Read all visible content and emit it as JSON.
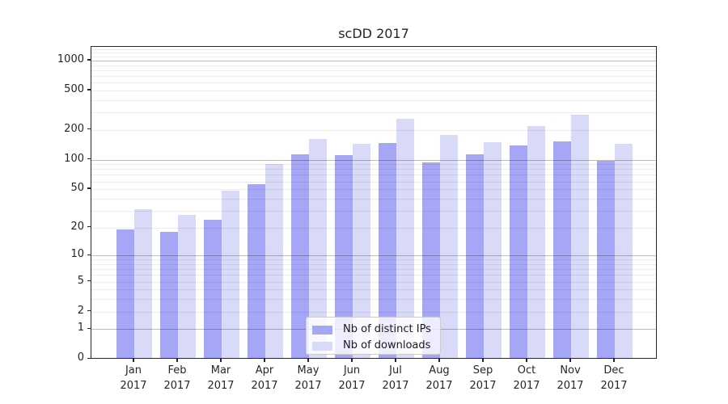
{
  "chart_data": {
    "type": "bar",
    "title": "scDD 2017",
    "categories": [
      "Jan 2017",
      "Feb 2017",
      "Mar 2017",
      "Apr 2017",
      "May 2017",
      "Jun 2017",
      "Jul 2017",
      "Aug 2017",
      "Sep 2017",
      "Oct 2017",
      "Nov 2017",
      "Dec 2017"
    ],
    "series": [
      {
        "name": "Nb of distinct IPs",
        "color": "#a6a6f6",
        "values": [
          19,
          18,
          24,
          56,
          113,
          111,
          148,
          94,
          113,
          139,
          153,
          98
        ]
      },
      {
        "name": "Nb of downloads",
        "color": "#d9d9f8",
        "values": [
          31,
          27,
          48,
          90,
          163,
          144,
          260,
          179,
          151,
          217,
          286,
          146
        ]
      }
    ],
    "yscale": "log1p",
    "ylim": [
      0,
      1370
    ],
    "ytick_labels": [
      0,
      1,
      2,
      5,
      10,
      20,
      50,
      100,
      200,
      500,
      1000
    ],
    "grid": {
      "major_values": [
        1,
        10,
        100,
        1000
      ],
      "minor_values": [
        2,
        3,
        4,
        5,
        6,
        7,
        8,
        9,
        20,
        30,
        40,
        50,
        60,
        70,
        80,
        90,
        200,
        300,
        400,
        500,
        600,
        700,
        800,
        900,
        1100,
        1200,
        1300
      ]
    },
    "legend": {
      "position": "lower-center"
    },
    "colors": {
      "spine": "#262626",
      "tick_label": "#262626",
      "grid_major": "rgba(0,0,0,0.26)",
      "grid_minor": "rgba(0,0,0,0.07)",
      "legend_bg": "rgba(255,255,255,0.8)",
      "legend_border": "#cccccc"
    }
  }
}
